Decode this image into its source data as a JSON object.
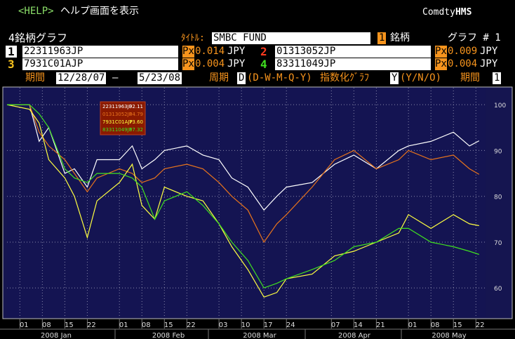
{
  "header": {
    "help": "<HELP>",
    "help_text": "ヘルプ画面を表示",
    "brand": "Comdty",
    "brand_bold": "HMS"
  },
  "form": {
    "title": "4銘柄グラフ",
    "title_label": "ﾀｲﾄﾙ:",
    "title_value": "SMBC FUND",
    "count": "1",
    "count_label": "銘柄",
    "graph_label": "グラフ # 1",
    "securities": [
      {
        "num": "1",
        "ticker": "22311963JP",
        "px": "Px",
        "tick": "0.014",
        "ccy": "JPY"
      },
      {
        "num": "2",
        "ticker": "01313052JP",
        "px": "Px",
        "tick": "0.009",
        "ccy": "JPY"
      },
      {
        "num": "3",
        "ticker": "7931C01AJP",
        "px": "Px",
        "tick": "0.004",
        "ccy": "JPY"
      },
      {
        "num": "4",
        "ticker": "83311049JP",
        "px": "Px",
        "tick": "0.004",
        "ccy": "JPY"
      }
    ],
    "period_label": "期間",
    "start": "12/28/07",
    "dash": "—",
    "end": "5/23/08",
    "freq_label": "周期",
    "freq": "D",
    "freq_options": "(D-W-M-Q-Y)",
    "index_label": "指数化ｸﾞﾗﾌ",
    "index": "Y",
    "index_options": "(Y/N/O)",
    "period2_label": "期間",
    "period2": "1"
  },
  "chart_data": {
    "type": "line",
    "x": [
      "2007-12-28",
      "2008-01-04",
      "2008-01-07",
      "2008-01-10",
      "2008-01-15",
      "2008-01-18",
      "2008-01-22",
      "2008-01-25",
      "2008-02-01",
      "2008-02-05",
      "2008-02-08",
      "2008-02-12",
      "2008-02-15",
      "2008-02-22",
      "2008-02-27",
      "2008-03-03",
      "2008-03-07",
      "2008-03-12",
      "2008-03-17",
      "2008-03-21",
      "2008-03-24",
      "2008-04-01",
      "2008-04-08",
      "2008-04-14",
      "2008-04-21",
      "2008-04-28",
      "2008-05-01",
      "2008-05-08",
      "2008-05-15",
      "2008-05-20",
      "2008-05-23"
    ],
    "series": [
      {
        "name": "22311963JP",
        "color": "#ffffff",
        "value_label": "92.11",
        "values": [
          100,
          100,
          92,
          95,
          85,
          86,
          82,
          88,
          88,
          91,
          86,
          88,
          90,
          91,
          89,
          88,
          84,
          82,
          77,
          80,
          82,
          83,
          87,
          89,
          86,
          90,
          91,
          92,
          94,
          91,
          92.11
        ]
      },
      {
        "name": "01313052JP",
        "color": "#e8741c",
        "value_label": "84.79",
        "values": [
          100,
          100,
          94,
          91,
          88,
          85,
          81,
          84,
          86,
          85,
          83,
          84,
          86,
          87,
          86,
          83,
          80,
          77,
          70,
          74,
          76,
          82,
          88,
          90,
          86,
          88,
          90,
          88,
          89,
          86,
          84.79
        ]
      },
      {
        "name": "7931C01AJP",
        "color": "#ffff40",
        "value_label": "73.60",
        "values": [
          100,
          99,
          96,
          88,
          84,
          80,
          71,
          79,
          83,
          87,
          78,
          75,
          82,
          80,
          79,
          74,
          69,
          64,
          58,
          59,
          62,
          63,
          67,
          68,
          70,
          72,
          76,
          73,
          76,
          74,
          73.6
        ]
      },
      {
        "name": "83311049JP",
        "color": "#40e020",
        "value_label": "67.32",
        "values": [
          100,
          100,
          98,
          95,
          86,
          84,
          83,
          85,
          85,
          84,
          82,
          75,
          79,
          81,
          78,
          74,
          70,
          66,
          60,
          61,
          62,
          64,
          66,
          69,
          70,
          73,
          73,
          70,
          69,
          68,
          67.32
        ]
      }
    ],
    "xlim": [
      "2007-12-28",
      "2008-05-25"
    ],
    "xticks": [
      {
        "value": "2008-01-01",
        "label": "01"
      },
      {
        "value": "2008-01-08",
        "label": "08"
      },
      {
        "value": "2008-01-15",
        "label": "15"
      },
      {
        "value": "2008-01-22",
        "label": "22"
      },
      {
        "value": "2008-02-01",
        "label": "01"
      },
      {
        "value": "2008-02-08",
        "label": "08"
      },
      {
        "value": "2008-02-15",
        "label": "15"
      },
      {
        "value": "2008-02-22",
        "label": "22"
      },
      {
        "value": "2008-03-03",
        "label": "03"
      },
      {
        "value": "2008-03-10",
        "label": "10"
      },
      {
        "value": "2008-03-17",
        "label": "17"
      },
      {
        "value": "2008-03-24",
        "label": "24"
      },
      {
        "value": "2008-04-07",
        "label": "07"
      },
      {
        "value": "2008-04-14",
        "label": "14"
      },
      {
        "value": "2008-04-21",
        "label": "21"
      },
      {
        "value": "2008-05-01",
        "label": "01"
      },
      {
        "value": "2008-05-08",
        "label": "08"
      },
      {
        "value": "2008-05-15",
        "label": "15"
      },
      {
        "value": "2008-05-22",
        "label": "22"
      }
    ],
    "ylim": [
      53.6,
      103.7
    ],
    "yticks": [
      60,
      70,
      80,
      90,
      100
    ],
    "grid": true,
    "month_labels": [
      "2008 Jan",
      "2008 Feb",
      "2008 Mar",
      "2008 Apr",
      "2008 May"
    ]
  }
}
